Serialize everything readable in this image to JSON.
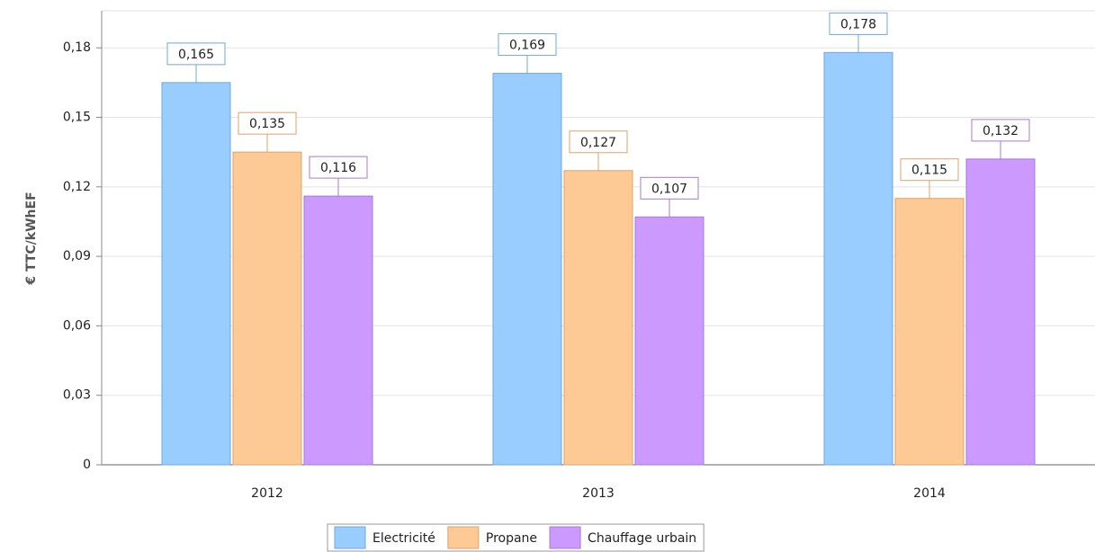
{
  "chart_data": {
    "type": "bar",
    "y_label": "€ TTC/kWhEF",
    "categories": [
      "2012",
      "2013",
      "2014"
    ],
    "series": [
      {
        "name": "Electricité",
        "color": "#99ccff",
        "values": [
          0.165,
          0.169,
          0.178
        ],
        "value_labels": [
          "0,165",
          "0,169",
          "0,178"
        ]
      },
      {
        "name": "Propane",
        "color": "#fdc994",
        "values": [
          0.135,
          0.127,
          0.115
        ],
        "value_labels": [
          "0,135",
          "0,127",
          "0,115"
        ]
      },
      {
        "name": "Chauffage urbain",
        "color": "#cc99ff",
        "values": [
          0.116,
          0.107,
          0.132
        ],
        "value_labels": [
          "0,116",
          "0,107",
          "0,132"
        ]
      }
    ],
    "ylim": [
      0,
      0.196
    ],
    "yticks": [
      0,
      {
        "value": 0.03,
        "label": "0,03"
      },
      {
        "value": 0.06,
        "label": "0,06"
      },
      {
        "value": 0.09,
        "label": "0,09"
      },
      {
        "value": 0.12,
        "label": "0,12"
      },
      {
        "value": 0.15,
        "label": "0,15"
      },
      {
        "value": 0.18,
        "label": "0,18"
      }
    ],
    "grid": true,
    "legend": "bottom"
  }
}
